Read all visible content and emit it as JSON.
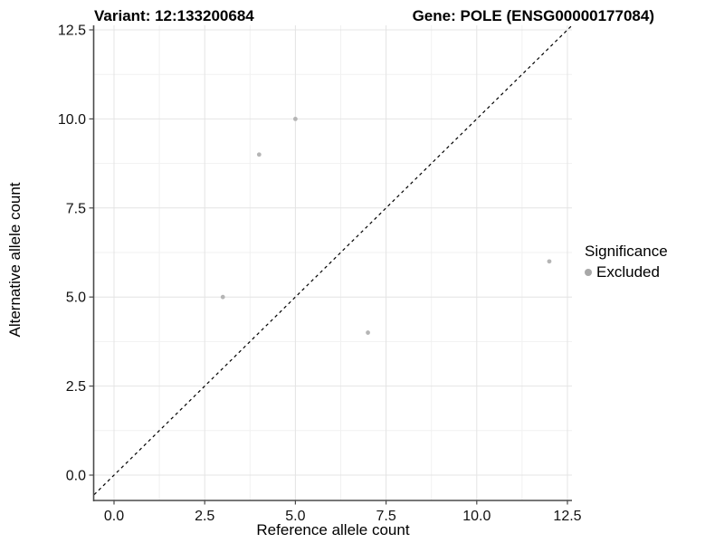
{
  "titles": {
    "left": "Variant: 12:133200684",
    "right": "Gene: POLE (ENSG00000177084)"
  },
  "chart_data": {
    "type": "scatter",
    "title": "Variant: 12:133200684 — Gene: POLE (ENSG00000177084)",
    "xlabel": "Reference allele count",
    "ylabel": "Alternative allele count",
    "xlim": [
      0,
      12.5
    ],
    "ylim": [
      0,
      12.5
    ],
    "x_ticks": [
      0,
      2.5,
      5,
      7.5,
      10,
      12.5
    ],
    "x_tick_labels": [
      "0.0",
      "2.5",
      "5.0",
      "7.5",
      "10.0",
      "12.5"
    ],
    "y_ticks": [
      0,
      2.5,
      5,
      7.5,
      10,
      12.5
    ],
    "y_tick_labels": [
      "0.0",
      "2.5",
      "5.0",
      "7.5",
      "10.0",
      "12.5"
    ],
    "minor_ticks": [
      1.25,
      3.75,
      6.25,
      8.75,
      11.25
    ],
    "grid": true,
    "series": [
      {
        "name": "Excluded",
        "color": "#b5b5b5",
        "points": [
          [
            3,
            5
          ],
          [
            4,
            9
          ],
          [
            5,
            10
          ],
          [
            7,
            4
          ],
          [
            12,
            6
          ]
        ]
      }
    ],
    "reference_line": {
      "equation": "y = x",
      "style": "dashed",
      "color": "#000000"
    },
    "legend": {
      "position": "right",
      "title": "Significance",
      "entries": [
        {
          "label": "Excluded",
          "color": "#a8a8a8"
        }
      ]
    },
    "colors": {
      "major_grid": "#e4e4e4",
      "minor_grid": "#f1f1f1",
      "axis_line": "#4a4a4a",
      "tick_text": "#111111"
    }
  }
}
